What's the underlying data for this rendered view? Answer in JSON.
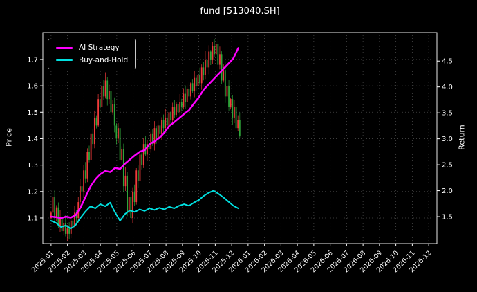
{
  "title": "fund [513040.SH]",
  "legend": {
    "items": [
      {
        "label": "AI Strategy",
        "color": "#ff00ff"
      },
      {
        "label": "Buy-and-Hold",
        "color": "#00e0e0"
      }
    ]
  },
  "chart_data": {
    "type": "line+candlestick",
    "title": "fund [513040.SH]",
    "ylabel_left": "Price",
    "ylabel_right": "Return",
    "background": "#000000",
    "grid": true,
    "legend_position": "upper left",
    "x_tick_labels": [
      "2025-01",
      "2025-02",
      "2025-03",
      "2025-04",
      "2025-05",
      "2025-06",
      "2025-07",
      "2025-08",
      "2025-09",
      "2025-10",
      "2025-11",
      "2025-12",
      "2026-01",
      "2026-02",
      "2026-03",
      "2026-04",
      "2026-05",
      "2026-06",
      "2026-07",
      "2026-08",
      "2026-09",
      "2026-10",
      "2026-11",
      "2026-12"
    ],
    "price_ticks": [
      1.1,
      1.2,
      1.3,
      1.4,
      1.5,
      1.6,
      1.7
    ],
    "return_ticks": [
      1.5,
      2.0,
      2.5,
      3.0,
      3.5,
      4.0,
      4.5
    ],
    "price_range": [
      1.003,
      1.802
    ],
    "return_range": [
      0.98,
      5.05
    ],
    "candles": {
      "up_color": "#f23b3b",
      "down_color": "#2fa63a",
      "x_start": 0.0,
      "x_step": 0.1105,
      "open_first": 1.1,
      "closes": [
        1.12,
        1.18,
        1.1,
        1.14,
        1.07,
        1.1,
        1.05,
        1.08,
        1.04,
        1.06,
        1.04,
        1.09,
        1.07,
        1.12,
        1.1,
        1.16,
        1.22,
        1.2,
        1.28,
        1.25,
        1.35,
        1.32,
        1.42,
        1.38,
        1.48,
        1.45,
        1.55,
        1.52,
        1.6,
        1.56,
        1.62,
        1.55,
        1.58,
        1.5,
        1.53,
        1.45,
        1.4,
        1.44,
        1.32,
        1.36,
        1.22,
        1.26,
        1.12,
        1.18,
        1.1,
        1.2,
        1.16,
        1.28,
        1.24,
        1.34,
        1.3,
        1.38,
        1.34,
        1.38,
        1.36,
        1.42,
        1.38,
        1.44,
        1.4,
        1.45,
        1.42,
        1.47,
        1.44,
        1.48,
        1.45,
        1.5,
        1.47,
        1.52,
        1.49,
        1.53,
        1.5,
        1.54,
        1.52,
        1.57,
        1.54,
        1.59,
        1.56,
        1.61,
        1.58,
        1.63,
        1.6,
        1.64,
        1.61,
        1.67,
        1.64,
        1.7,
        1.67,
        1.73,
        1.7,
        1.75,
        1.72,
        1.76,
        1.68,
        1.72,
        1.62,
        1.66,
        1.56,
        1.6,
        1.52,
        1.55,
        1.48,
        1.52,
        1.44,
        1.47,
        1.41
      ]
    },
    "series": [
      {
        "name": "AI Strategy",
        "axis": "return",
        "color": "#ff00ff",
        "width": 2.5,
        "x": [
          0,
          0.3,
          0.6,
          0.9,
          1.2,
          1.5,
          1.8,
          2.1,
          2.4,
          2.7,
          3,
          3.3,
          3.6,
          3.9,
          4.2,
          4.5,
          4.8,
          5.1,
          5.4,
          5.7,
          6,
          6.3,
          6.6,
          6.9,
          7.2,
          7.5,
          7.8,
          8.1,
          8.4,
          8.7,
          9,
          9.3,
          9.6,
          9.9,
          10.2,
          10.5,
          10.8,
          11.1,
          11.4
        ],
        "y": [
          1.5,
          1.49,
          1.47,
          1.5,
          1.48,
          1.53,
          1.68,
          1.88,
          2.08,
          2.22,
          2.32,
          2.38,
          2.36,
          2.44,
          2.42,
          2.52,
          2.6,
          2.68,
          2.75,
          2.78,
          2.9,
          2.95,
          3.02,
          3.12,
          3.25,
          3.32,
          3.4,
          3.48,
          3.55,
          3.68,
          3.8,
          3.95,
          4.05,
          4.15,
          4.25,
          4.35,
          4.45,
          4.55,
          4.75
        ]
      },
      {
        "name": "Buy-and-Hold",
        "axis": "return",
        "color": "#00e0e0",
        "width": 2.0,
        "x": [
          0,
          0.3,
          0.6,
          0.9,
          1.2,
          1.5,
          1.8,
          2.1,
          2.4,
          2.7,
          3,
          3.3,
          3.6,
          3.9,
          4.2,
          4.5,
          4.8,
          5.1,
          5.4,
          5.7,
          6,
          6.3,
          6.6,
          6.9,
          7.2,
          7.5,
          7.8,
          8.1,
          8.4,
          8.7,
          9,
          9.3,
          9.6,
          9.9,
          10.2,
          10.5,
          10.8,
          11.1,
          11.4
        ],
        "y": [
          1.42,
          1.38,
          1.3,
          1.33,
          1.27,
          1.34,
          1.48,
          1.6,
          1.7,
          1.66,
          1.74,
          1.7,
          1.77,
          1.58,
          1.42,
          1.55,
          1.62,
          1.59,
          1.64,
          1.61,
          1.66,
          1.63,
          1.67,
          1.64,
          1.69,
          1.66,
          1.71,
          1.74,
          1.71,
          1.77,
          1.82,
          1.9,
          1.96,
          2.0,
          1.94,
          1.87,
          1.79,
          1.71,
          1.66
        ]
      }
    ]
  }
}
